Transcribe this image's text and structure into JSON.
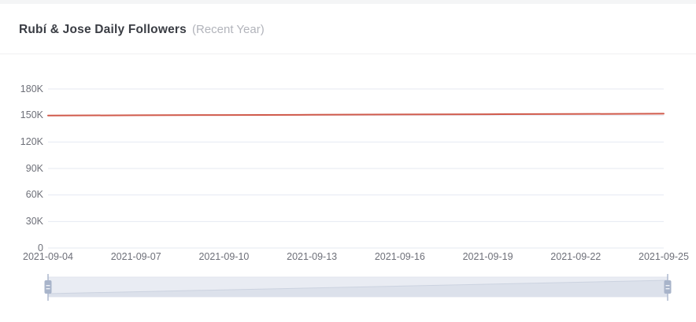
{
  "header": {
    "title": "Rubí & Jose Daily Followers",
    "subtitle": "(Recent Year)"
  },
  "chart_data": {
    "type": "line",
    "title": "Rubí & Jose Daily Followers (Recent Year)",
    "x": [
      "2021-09-04",
      "2021-09-07",
      "2021-09-10",
      "2021-09-13",
      "2021-09-16",
      "2021-09-19",
      "2021-09-22",
      "2021-09-25"
    ],
    "series": [
      {
        "name": "Daily Followers",
        "color": "#d05a4b",
        "values": [
          149900,
          150200,
          150500,
          150800,
          151100,
          151400,
          151700,
          152000
        ]
      }
    ],
    "ylim": [
      0,
      180000
    ],
    "y_ticks": [
      {
        "value": 0,
        "label": "0"
      },
      {
        "value": 30000,
        "label": "30K"
      },
      {
        "value": 60000,
        "label": "60K"
      },
      {
        "value": 90000,
        "label": "90K"
      },
      {
        "value": 120000,
        "label": "120K"
      },
      {
        "value": 150000,
        "label": "150K"
      },
      {
        "value": 180000,
        "label": "180K"
      }
    ],
    "xlabel": "",
    "ylabel": "",
    "grid": true,
    "legend_position": "none"
  },
  "colors": {
    "series_line": "#d05a4b",
    "grid_line": "#e5e9f2",
    "axis_text": "#6e7079",
    "title_text": "#3a3d44",
    "subtitle_text": "#b2b4bb",
    "top_strip": "#f4f5f6",
    "slider_filler": "#e9ecf3",
    "slider_shadow_area": "#dce1eb",
    "slider_shadow_line": "#ccd3e0",
    "slider_handle": "#a8b4ca"
  },
  "slider": {
    "left_handle_icon": "drag-grip-icon",
    "right_handle_icon": "drag-grip-icon"
  }
}
